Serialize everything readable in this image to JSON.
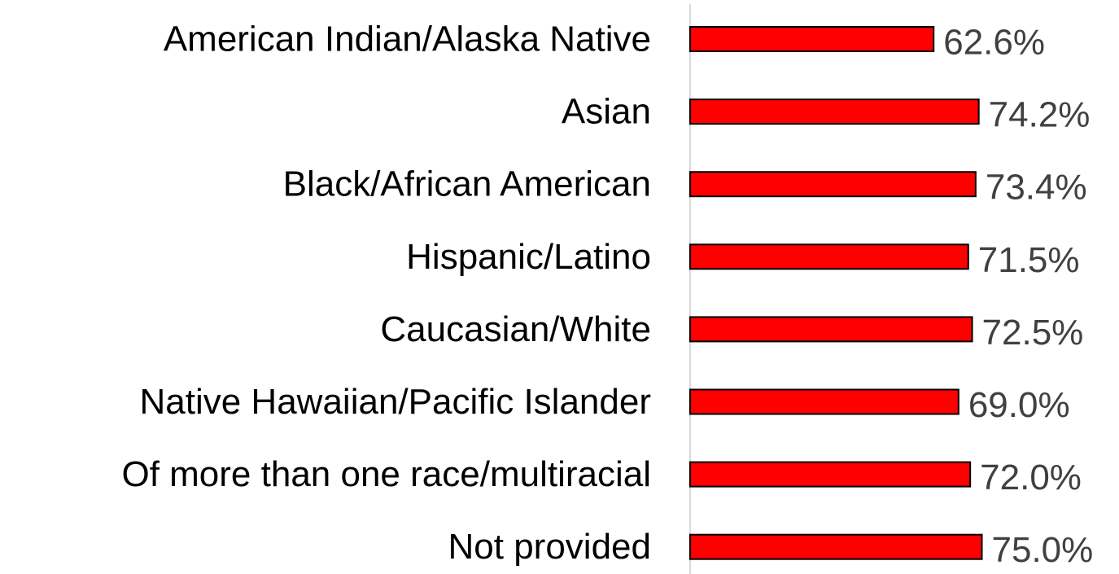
{
  "chart_data": {
    "type": "hbar",
    "categories": [
      "American Indian/Alaska Native",
      "Asian",
      "Black/African American",
      "Hispanic/Latino",
      "Caucasian/White",
      "Native Hawaiian/Pacific Islander",
      "Of more than one race/multiracial",
      "Not provided"
    ],
    "values": [
      62.6,
      74.2,
      73.4,
      71.5,
      72.5,
      69.0,
      72.0,
      75.0
    ],
    "value_labels": [
      "62.6%",
      "74.2%",
      "73.4%",
      "71.5%",
      "72.5%",
      "69.0%",
      "72.0%",
      "75.0%"
    ],
    "color": "#ff0000",
    "xlim": [
      0,
      100
    ]
  }
}
